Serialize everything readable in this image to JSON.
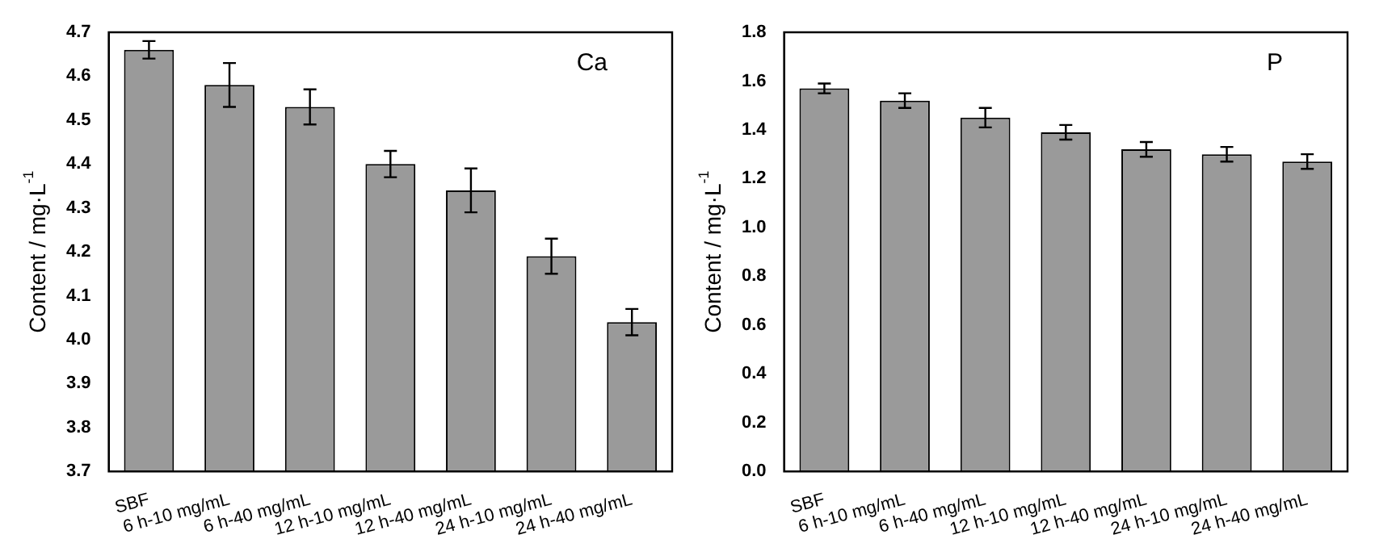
{
  "chart_data": [
    {
      "type": "bar",
      "categories": [
        "SBF",
        "6 h-10 mg/mL",
        "6 h-40 mg/mL",
        "12 h-10 mg/mL",
        "12 h-40 mg/mL",
        "24 h-10 mg/mL",
        "24 h-40 mg/mL"
      ],
      "values": [
        4.66,
        4.58,
        4.53,
        4.4,
        4.34,
        4.19,
        4.04
      ],
      "errors": [
        0.02,
        0.05,
        0.04,
        0.03,
        0.05,
        0.04,
        0.03
      ],
      "color": "#9a9a9a",
      "ylabel": "Content / mg·L$^{-1}$",
      "ylim": [
        3.7,
        4.7
      ],
      "yticks": [
        3.7,
        3.8,
        3.9,
        {
          "value": 4,
          "label": "4.0"
        },
        4.1,
        4.2,
        4.3,
        4.4,
        4.5,
        4.6,
        4.7
      ],
      "annotations": [
        "Ca"
      ],
      "grid": false,
      "legend": false
    },
    {
      "type": "bar",
      "categories": [
        "SBF",
        "6 h-10 mg/mL",
        "6 h-40 mg/mL",
        "12 h-10 mg/mL",
        "12 h-40 mg/mL",
        "24 h-10 mg/mL",
        "24 h-40 mg/mL"
      ],
      "values": [
        1.57,
        1.52,
        1.45,
        1.39,
        1.32,
        1.3,
        1.27
      ],
      "errors": [
        0.02,
        0.03,
        0.04,
        0.03,
        0.03,
        0.03,
        0.03
      ],
      "color": "#9a9a9a",
      "ylabel": "Content / mg·L$^{-1}$",
      "ylim": [
        0.0,
        1.8
      ],
      "yticks": [
        {
          "value": 0,
          "label": "0.0"
        },
        0.2,
        0.4,
        0.6,
        0.8,
        {
          "value": 1,
          "label": "1.0"
        },
        1.2,
        1.4,
        1.6,
        1.8
      ],
      "annotations": [
        "P"
      ],
      "grid": false,
      "legend": false
    }
  ]
}
